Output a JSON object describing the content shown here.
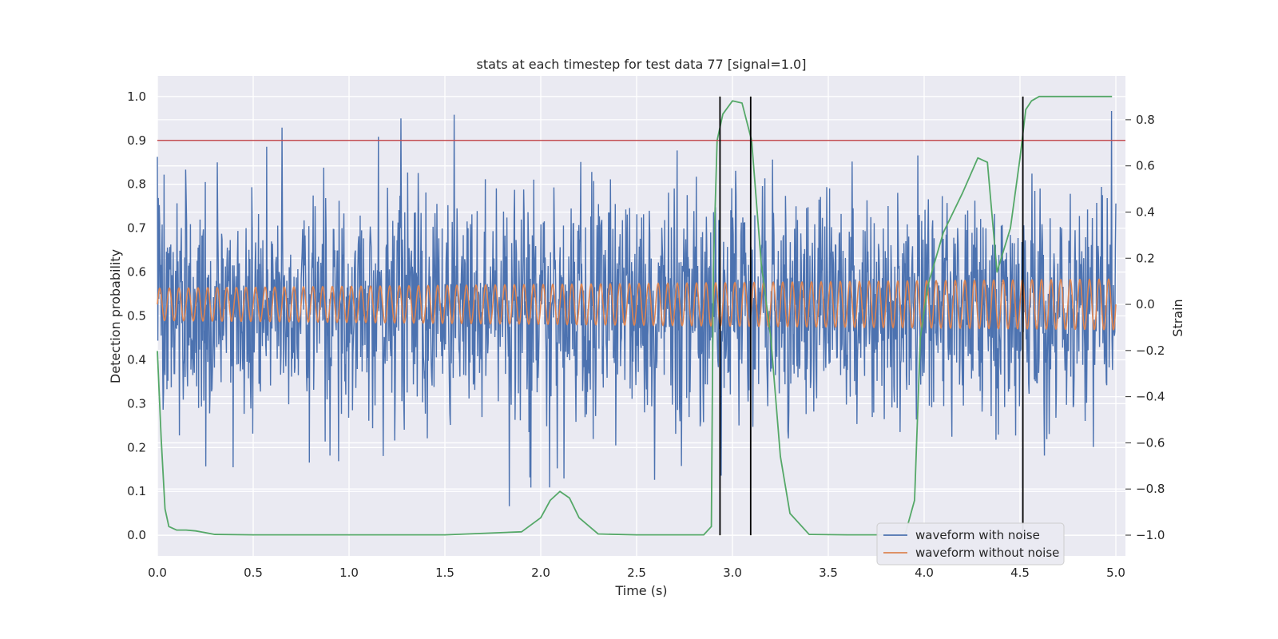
{
  "chart_data": {
    "type": "line",
    "title": "stats at each timestep for test data 77 [signal=1.0]",
    "xlabel": "Time (s)",
    "ylabel_left": "Detection probability",
    "ylabel_right": "Strain",
    "xlim": [
      0.0,
      5.05
    ],
    "ylim_left": [
      -0.047,
      1.047
    ],
    "ylim_right": [
      -1.09,
      0.99
    ],
    "x_ticks": [
      "0.0",
      "0.5",
      "1.0",
      "1.5",
      "2.0",
      "2.5",
      "3.0",
      "3.5",
      "4.0",
      "4.5",
      "5.0"
    ],
    "y_ticks_left": [
      "0.0",
      "0.1",
      "0.2",
      "0.3",
      "0.4",
      "0.5",
      "0.6",
      "0.7",
      "0.8",
      "0.9",
      "1.0"
    ],
    "y_ticks_right": [
      "−1.0",
      "−0.8",
      "−0.6",
      "−0.4",
      "−0.2",
      "0.0",
      "0.2",
      "0.4",
      "0.6",
      "0.8"
    ],
    "grid": true,
    "legend_position": "lower-right",
    "threshold": {
      "value": 0.9,
      "color": "#c44e52"
    },
    "vertical_markers": [
      2.935,
      3.095,
      4.515
    ],
    "series": [
      {
        "name": "waveform with noise",
        "axis": "right",
        "color": "#4c72b0",
        "noise_std": 0.24,
        "noise_range": [
          -1.0,
          0.9
        ],
        "x_range": [
          0.0,
          5.0
        ],
        "samples": 2000
      },
      {
        "name": "waveform without noise",
        "axis": "right",
        "color": "#dd8452",
        "cycles": 100,
        "amplitude_start": 0.07,
        "amplitude_end": 0.11,
        "x_range": [
          0.0,
          5.0
        ]
      },
      {
        "axis": "left",
        "color": "#55a868",
        "x": [
          0.0,
          0.02,
          0.04,
          0.06,
          0.1,
          0.15,
          0.2,
          0.3,
          0.5,
          1.0,
          1.5,
          1.9,
          2.0,
          2.05,
          2.1,
          2.15,
          2.2,
          2.3,
          2.5,
          2.85,
          2.89,
          2.9,
          2.92,
          2.95,
          3.0,
          3.05,
          3.1,
          3.15,
          3.2,
          3.25,
          3.3,
          3.4,
          3.6,
          3.9,
          3.95,
          3.98,
          4.02,
          4.1,
          4.2,
          4.28,
          4.33,
          4.38,
          4.45,
          4.5,
          4.53,
          4.56,
          4.6,
          4.7,
          4.98
        ],
        "y": [
          0.42,
          0.22,
          0.06,
          0.02,
          0.012,
          0.012,
          0.01,
          0.002,
          0.001,
          0.001,
          0.001,
          0.008,
          0.04,
          0.08,
          0.1,
          0.085,
          0.04,
          0.003,
          0.001,
          0.001,
          0.02,
          0.6,
          0.9,
          0.96,
          0.99,
          0.985,
          0.9,
          0.62,
          0.45,
          0.18,
          0.05,
          0.002,
          0.001,
          0.001,
          0.08,
          0.45,
          0.57,
          0.69,
          0.78,
          0.86,
          0.85,
          0.6,
          0.7,
          0.86,
          0.97,
          0.99,
          1.0,
          1.0,
          1.0
        ]
      }
    ]
  }
}
